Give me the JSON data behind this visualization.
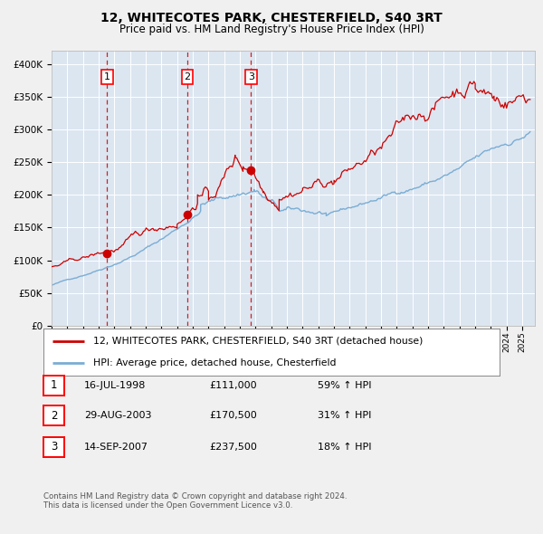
{
  "title": "12, WHITECOTES PARK, CHESTERFIELD, S40 3RT",
  "subtitle": "Price paid vs. HM Land Registry's House Price Index (HPI)",
  "fig_bg_color": "#f0f0f0",
  "plot_bg_color": "#dce6f1",
  "red_line_color": "#cc0000",
  "blue_line_color": "#7aadd4",
  "grid_color": "#ffffff",
  "sale_points": [
    {
      "date_num": 1998.54,
      "price": 111000,
      "label": "1"
    },
    {
      "date_num": 2003.66,
      "price": 170500,
      "label": "2"
    },
    {
      "date_num": 2007.71,
      "price": 237500,
      "label": "3"
    }
  ],
  "vline_color": "#cc0000",
  "legend_entries": [
    "12, WHITECOTES PARK, CHESTERFIELD, S40 3RT (detached house)",
    "HPI: Average price, detached house, Chesterfield"
  ],
  "table_rows": [
    [
      "1",
      "16-JUL-1998",
      "£111,000",
      "59% ↑ HPI"
    ],
    [
      "2",
      "29-AUG-2003",
      "£170,500",
      "31% ↑ HPI"
    ],
    [
      "3",
      "14-SEP-2007",
      "£237,500",
      "18% ↑ HPI"
    ]
  ],
  "footer": "Contains HM Land Registry data © Crown copyright and database right 2024.\nThis data is licensed under the Open Government Licence v3.0.",
  "ylim": [
    0,
    420000
  ],
  "yticks": [
    0,
    50000,
    100000,
    150000,
    200000,
    250000,
    300000,
    350000,
    400000
  ],
  "xmin": 1995.0,
  "xmax": 2025.8
}
